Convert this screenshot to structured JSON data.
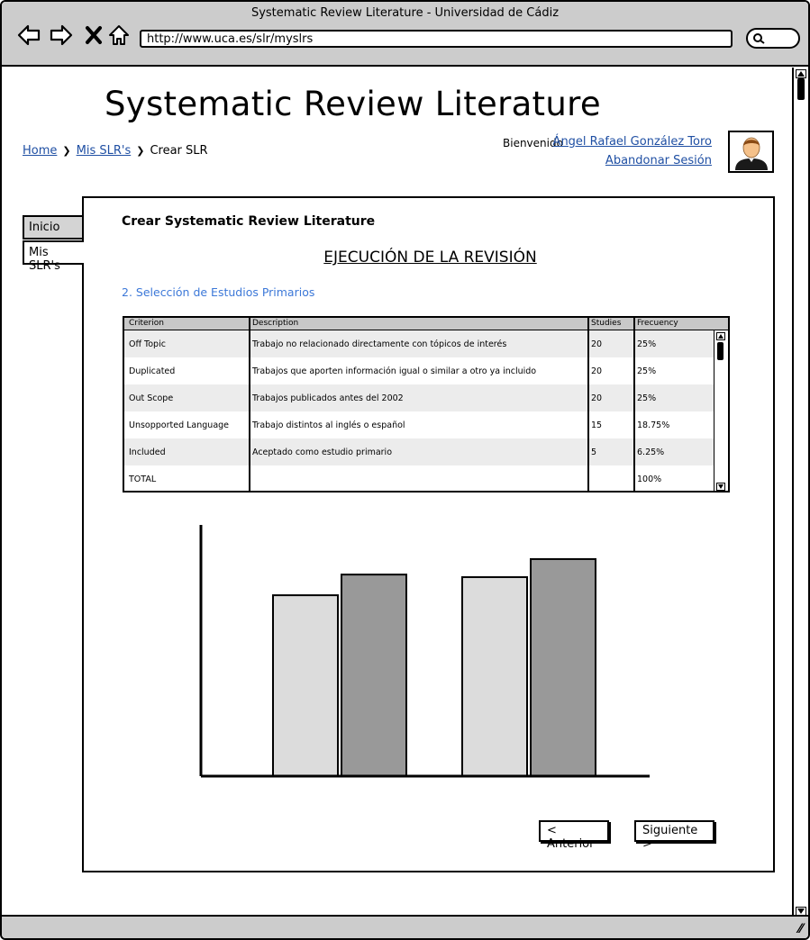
{
  "window": {
    "title": "Systematic Review Literature - Universidad de Cádiz",
    "url": "http://www.uca.es/slr/myslrs"
  },
  "header": {
    "app_title": "Systematic Review Literature",
    "breadcrumb": [
      {
        "label": "Home",
        "link": true
      },
      {
        "label": "Mis SLR's",
        "link": true
      },
      {
        "label": "Crear SLR",
        "link": false
      }
    ],
    "welcome_label": "Bienvenido",
    "user_name": "Ángel Rafael González Toro",
    "logout_label": "Abandonar Sesión",
    "avatar_icon": "user-avatar-icon"
  },
  "sidebar": {
    "tabs": [
      {
        "label": "Inicio",
        "active": false
      },
      {
        "label": "Mis SLR's",
        "active": true
      }
    ]
  },
  "main": {
    "panel_title": "Crear Systematic Review Literature",
    "section_title": "EJECUCIÓN DE LA REVISIÓN",
    "subsection_title": "2. Selección de Estudios Primarios",
    "table": {
      "columns": [
        "Criterion",
        "Description",
        "Studies",
        "Frecuency"
      ],
      "rows": [
        [
          "Off Topic",
          "Trabajo no relacionado directamente con tópicos de interés",
          "20",
          "25%"
        ],
        [
          "Duplicated",
          "Trabajos que aporten información igual o similar a otro ya incluido",
          "20",
          "25%"
        ],
        [
          "Out Scope",
          "Trabajos publicados antes del 2002",
          "20",
          "25%"
        ],
        [
          "Unsopported Language",
          "Trabajo distintos al inglés o español",
          "15",
          "18.75%"
        ],
        [
          "Included",
          "Aceptado como estudio primario",
          "5",
          "6.25%"
        ],
        [
          "TOTAL",
          "",
          "",
          "100%"
        ]
      ]
    },
    "buttons": {
      "previous": "< Anterior",
      "next": "Siguiente >"
    }
  },
  "chart_data": {
    "type": "bar",
    "categories": [
      "",
      ""
    ],
    "series": [
      {
        "values": [
          70,
          77
        ],
        "color": "#dcdcdc"
      },
      {
        "values": [
          78,
          84
        ],
        "color": "#999999"
      }
    ],
    "ylim": [
      0,
      100
    ],
    "grid": false,
    "legend": "none"
  },
  "colors": {
    "link": "#1f4fa3",
    "subsection": "#3c78d8",
    "chrome": "#cccccc"
  }
}
